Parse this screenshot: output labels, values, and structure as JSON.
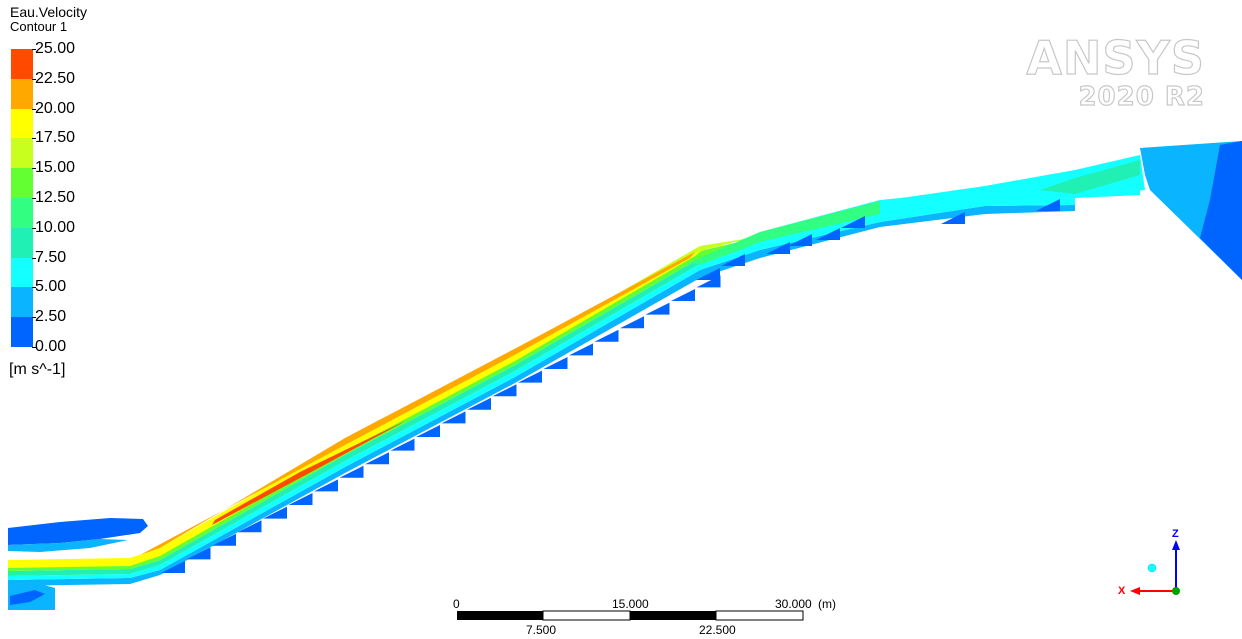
{
  "legend": {
    "title": "Eau.Velocity",
    "subtitle": "Contour 1",
    "ticks": [
      "25.00",
      "22.50",
      "20.00",
      "17.50",
      "15.00",
      "12.50",
      "10.00",
      "7.50",
      "5.00",
      "2.50",
      "0.00"
    ],
    "units": "[m s^-1]",
    "colors": [
      "#ff4a00",
      "#ffa800",
      "#ffff00",
      "#c8ff1e",
      "#64ff32",
      "#32ff82",
      "#20f0b4",
      "#14ffff",
      "#0ab4ff",
      "#0064ff",
      "#0000ff"
    ]
  },
  "logo": {
    "brand": "ANSYS",
    "version": "2020 R2"
  },
  "scale": {
    "top_labels": [
      "0",
      "15.000",
      "30.000"
    ],
    "bottom_labels": [
      "7.500",
      "22.500"
    ],
    "unit": "(m)"
  },
  "axes": {
    "z": "Z",
    "x": "X",
    "colors": {
      "z": "#0000ff",
      "x": "#ff0000",
      "y": "#00a000",
      "marker": "#14ffff"
    }
  }
}
